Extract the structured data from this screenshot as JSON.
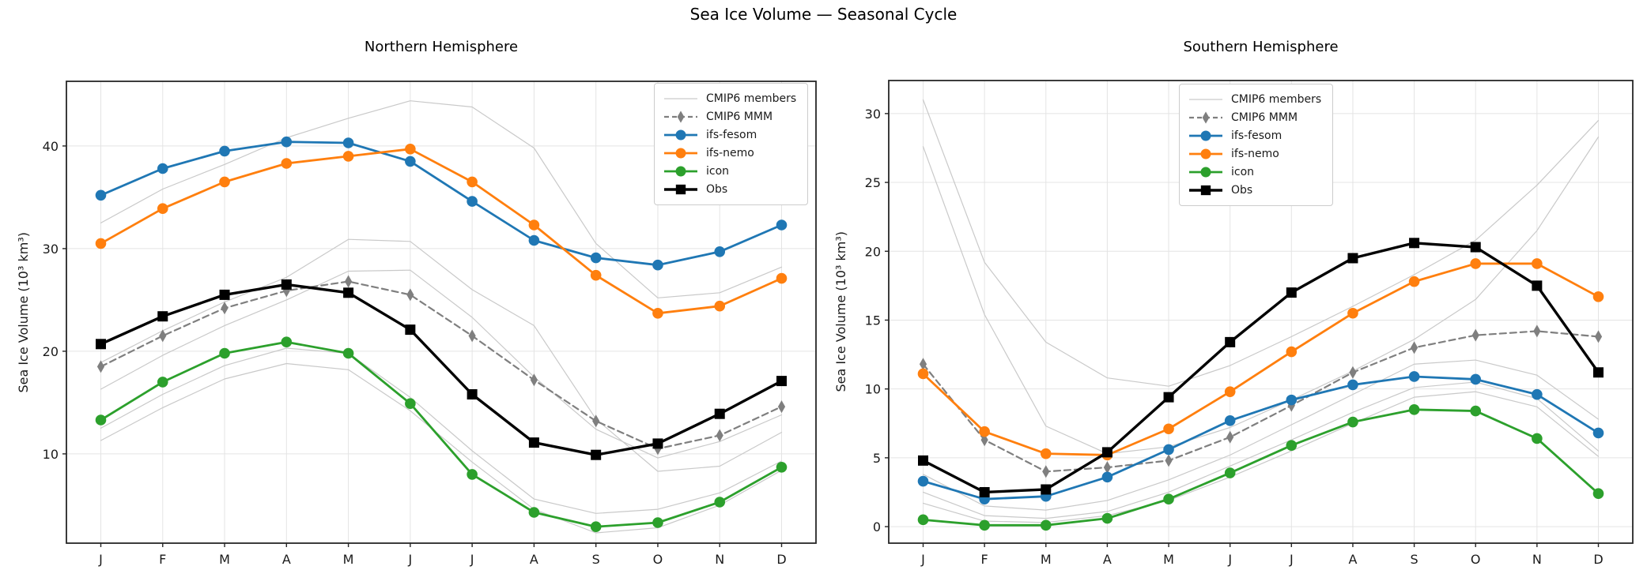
{
  "figure": {
    "title": "Sea Ice Volume — Seasonal Cycle"
  },
  "legend": {
    "items": [
      "CMIP6 members",
      "CMIP6 MMM",
      "ifs-fesom",
      "ifs-nemo",
      "icon",
      "Obs"
    ]
  },
  "colors": {
    "member": "#c9c9c9",
    "mmm": "#7f7f7f",
    "fesom": "#1f77b4",
    "nemo": "#ff7f0e",
    "icon": "#2ca02c",
    "obs": "#000000",
    "grid": "#e4e4e4",
    "frame": "#262626",
    "tick_text": "#1a1a1a"
  },
  "chart_data": [
    {
      "type": "line",
      "title": "Northern Hemisphere",
      "ylabel": "Sea Ice Volume (10³ km³)",
      "categories": [
        "J",
        "F",
        "M",
        "A",
        "M",
        "J",
        "J",
        "A",
        "S",
        "O",
        "N",
        "D"
      ],
      "ylim": [
        1.3,
        46.3
      ],
      "yticks": [
        10,
        20,
        30,
        40
      ],
      "grid": true,
      "legend_position": "upper right",
      "series": [
        {
          "name": "CMIP6 member 1",
          "legend": "CMIP6 members",
          "role": "member",
          "color": "#c9c9c9",
          "marker": null,
          "line_style": "solid",
          "values": [
            32.5,
            35.8,
            38.2,
            40.8,
            42.7,
            44.4,
            43.8,
            39.8,
            30.5,
            25.2,
            25.7,
            28.2
          ]
        },
        {
          "name": "CMIP6 member 2",
          "legend": "CMIP6 members",
          "role": "member",
          "color": "#c9c9c9",
          "marker": null,
          "line_style": "solid",
          "values": [
            18.9,
            22.0,
            24.8,
            27.2,
            30.9,
            30.7,
            26.0,
            22.5,
            13.4,
            8.3,
            8.8,
            12.1
          ]
        },
        {
          "name": "CMIP6 member 3",
          "legend": "CMIP6 members",
          "role": "member",
          "color": "#c9c9c9",
          "marker": null,
          "line_style": "solid",
          "values": [
            16.3,
            19.6,
            22.5,
            25.0,
            27.8,
            27.9,
            23.3,
            17.5,
            12.4,
            9.6,
            11.2,
            13.8
          ]
        },
        {
          "name": "CMIP6 member 4",
          "legend": "CMIP6 members",
          "role": "member",
          "color": "#c9c9c9",
          "marker": null,
          "line_style": "solid",
          "values": [
            12.5,
            15.8,
            18.6,
            20.3,
            19.8,
            15.5,
            10.3,
            5.6,
            4.2,
            4.6,
            6.2,
            9.3
          ]
        },
        {
          "name": "CMIP6 member 5",
          "legend": "CMIP6 members",
          "role": "member",
          "color": "#c9c9c9",
          "marker": null,
          "line_style": "solid",
          "values": [
            11.3,
            14.5,
            17.3,
            18.8,
            18.2,
            14.2,
            9.2,
            4.6,
            2.3,
            2.8,
            5.0,
            8.4
          ]
        },
        {
          "name": "CMIP6 MMM",
          "legend": "CMIP6 MMM",
          "role": "mmm",
          "color": "#7f7f7f",
          "marker": "thin_diamond",
          "line_style": "dashed",
          "values": [
            18.5,
            21.5,
            24.2,
            25.9,
            26.8,
            25.5,
            21.5,
            17.2,
            13.2,
            10.5,
            11.8,
            14.6
          ]
        },
        {
          "name": "ifs-fesom",
          "legend": "ifs-fesom",
          "role": "model",
          "color": "#1f77b4",
          "marker": "circle",
          "line_style": "solid",
          "values": [
            35.2,
            37.8,
            39.5,
            40.4,
            40.3,
            38.5,
            34.6,
            30.8,
            29.1,
            28.4,
            29.7,
            32.3
          ]
        },
        {
          "name": "ifs-nemo",
          "legend": "ifs-nemo",
          "role": "model",
          "color": "#ff7f0e",
          "marker": "circle",
          "line_style": "solid",
          "values": [
            30.5,
            33.9,
            36.5,
            38.3,
            39.0,
            39.7,
            36.5,
            32.3,
            27.4,
            23.7,
            24.4,
            27.1
          ]
        },
        {
          "name": "icon",
          "legend": "icon",
          "role": "model",
          "color": "#2ca02c",
          "marker": "circle",
          "line_style": "solid",
          "values": [
            13.3,
            17.0,
            19.8,
            20.9,
            19.8,
            14.9,
            8.0,
            4.3,
            2.9,
            3.3,
            5.3,
            8.7
          ]
        },
        {
          "name": "Obs",
          "legend": "Obs",
          "role": "obs",
          "color": "#000000",
          "marker": "square",
          "line_style": "solid",
          "values": [
            20.7,
            23.4,
            25.5,
            26.5,
            25.7,
            22.1,
            15.8,
            11.1,
            9.9,
            11.0,
            13.9,
            17.1
          ]
        }
      ]
    },
    {
      "type": "line",
      "title": "Southern Hemisphere",
      "ylabel": "Sea Ice Volume (10³ km³)",
      "categories": [
        "J",
        "F",
        "M",
        "A",
        "M",
        "J",
        "J",
        "A",
        "S",
        "O",
        "N",
        "D"
      ],
      "ylim": [
        -1.2,
        32.4
      ],
      "yticks": [
        0,
        5,
        10,
        15,
        20,
        25,
        30
      ],
      "grid": true,
      "legend_position": "upper center-left",
      "series": [
        {
          "name": "CMIP6 member 1",
          "legend": "CMIP6 members",
          "role": "member",
          "color": "#c9c9c9",
          "marker": null,
          "line_style": "solid",
          "values": [
            31.0,
            19.2,
            13.4,
            10.8,
            10.2,
            11.7,
            13.8,
            16.0,
            18.3,
            20.8,
            24.8,
            29.5
          ]
        },
        {
          "name": "CMIP6 member 2",
          "legend": "CMIP6 members",
          "role": "member",
          "color": "#c9c9c9",
          "marker": null,
          "line_style": "solid",
          "values": [
            27.6,
            15.4,
            7.3,
            5.3,
            5.8,
            7.2,
            9.2,
            11.3,
            13.6,
            16.5,
            21.5,
            28.3
          ]
        },
        {
          "name": "CMIP6 member 3",
          "legend": "CMIP6 members",
          "role": "member",
          "color": "#c9c9c9",
          "marker": null,
          "line_style": "solid",
          "values": [
            3.8,
            1.5,
            1.2,
            1.9,
            3.4,
            5.2,
            7.4,
            9.6,
            11.8,
            12.1,
            11.0,
            7.8
          ]
        },
        {
          "name": "CMIP6 member 4",
          "legend": "CMIP6 members",
          "role": "member",
          "color": "#c9c9c9",
          "marker": null,
          "line_style": "solid",
          "values": [
            2.5,
            0.8,
            0.6,
            1.1,
            2.5,
            4.4,
            6.3,
            8.3,
            10.1,
            10.5,
            9.3,
            5.5
          ]
        },
        {
          "name": "CMIP6 member 5",
          "legend": "CMIP6 members",
          "role": "member",
          "color": "#c9c9c9",
          "marker": null,
          "line_style": "solid",
          "values": [
            1.7,
            0.4,
            0.3,
            0.8,
            1.9,
            3.6,
            5.5,
            7.5,
            9.4,
            9.8,
            8.7,
            5.1
          ]
        },
        {
          "name": "CMIP6 MMM",
          "legend": "CMIP6 MMM",
          "role": "mmm",
          "color": "#7f7f7f",
          "marker": "thin_diamond",
          "line_style": "dashed",
          "values": [
            11.8,
            6.3,
            4.0,
            4.3,
            4.8,
            6.5,
            8.8,
            11.2,
            13.0,
            13.9,
            14.2,
            13.8
          ]
        },
        {
          "name": "ifs-fesom",
          "legend": "ifs-fesom",
          "role": "model",
          "color": "#1f77b4",
          "marker": "circle",
          "line_style": "solid",
          "values": [
            3.3,
            2.0,
            2.2,
            3.6,
            5.6,
            7.7,
            9.2,
            10.3,
            10.9,
            10.7,
            9.6,
            6.8
          ]
        },
        {
          "name": "ifs-nemo",
          "legend": "ifs-nemo",
          "role": "model",
          "color": "#ff7f0e",
          "marker": "circle",
          "line_style": "solid",
          "values": [
            11.1,
            6.9,
            5.3,
            5.2,
            7.1,
            9.8,
            12.7,
            15.5,
            17.8,
            19.1,
            19.1,
            16.7
          ]
        },
        {
          "name": "icon",
          "legend": "icon",
          "role": "model",
          "color": "#2ca02c",
          "marker": "circle",
          "line_style": "solid",
          "values": [
            0.5,
            0.1,
            0.1,
            0.6,
            2.0,
            3.9,
            5.9,
            7.6,
            8.5,
            8.4,
            6.4,
            2.4
          ]
        },
        {
          "name": "Obs",
          "legend": "Obs",
          "role": "obs",
          "color": "#000000",
          "marker": "square",
          "line_style": "solid",
          "values": [
            4.8,
            2.5,
            2.7,
            5.4,
            9.4,
            13.4,
            17.0,
            19.5,
            20.6,
            20.3,
            17.5,
            11.2
          ]
        }
      ]
    }
  ]
}
